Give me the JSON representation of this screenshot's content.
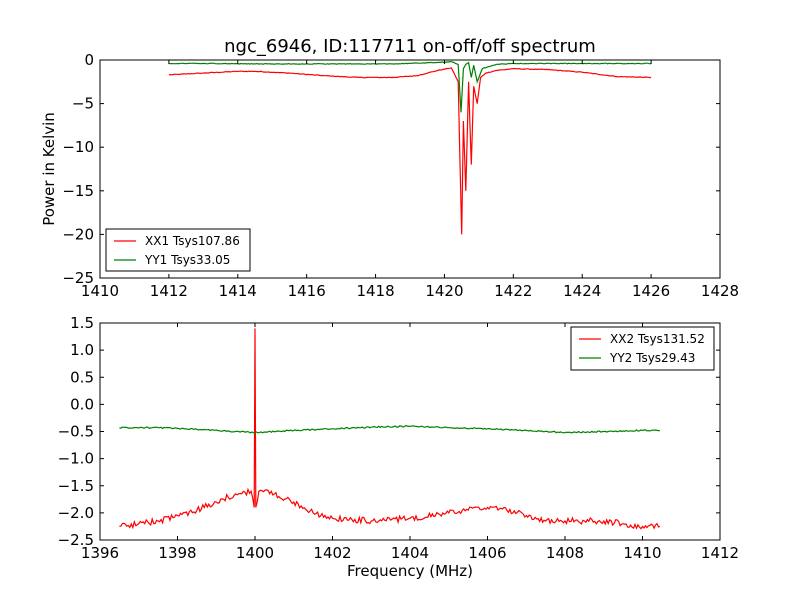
{
  "chart_data": [
    {
      "type": "line",
      "title": "ngc_6946, ID:117711 on-off/off spectrum",
      "xlabel": "",
      "ylabel": "Power in Kelvin",
      "xlim": [
        1410,
        1428
      ],
      "ylim": [
        -25,
        0
      ],
      "xticks": [
        "1410",
        "1412",
        "1414",
        "1416",
        "1418",
        "1420",
        "1422",
        "1424",
        "1426",
        "1428"
      ],
      "yticks": [
        "0",
        "−5",
        "−10",
        "−15",
        "−20",
        "−25"
      ],
      "legend": "lower-left",
      "grid": false,
      "series": [
        {
          "name": "XX1 Tsys107.86",
          "color": "#ff0000",
          "x": [
            1412.0,
            1413.0,
            1414.0,
            1414.5,
            1415.5,
            1416.5,
            1417.5,
            1418.5,
            1419.2,
            1419.8,
            1420.2,
            1420.4,
            1420.5,
            1420.55,
            1420.62,
            1420.7,
            1420.78,
            1420.85,
            1420.95,
            1421.05,
            1421.2,
            1421.5,
            1422.0,
            1423.0,
            1424.0,
            1425.0,
            1426.0
          ],
          "y": [
            -1.7,
            -1.5,
            -1.3,
            -1.3,
            -1.5,
            -1.8,
            -2.0,
            -2.0,
            -1.8,
            -1.2,
            -0.9,
            -2.5,
            -20.0,
            -7.0,
            -15.0,
            -2.5,
            -12.0,
            -3.0,
            -5.0,
            -2.0,
            -1.5,
            -1.2,
            -1.0,
            -1.1,
            -1.4,
            -1.9,
            -2.0
          ]
        },
        {
          "name": "YY1 Tsys33.05",
          "color": "#008000",
          "x": [
            1412.0,
            1413.0,
            1415.0,
            1417.0,
            1418.5,
            1419.7,
            1420.2,
            1420.4,
            1420.48,
            1420.55,
            1420.62,
            1420.7,
            1420.78,
            1420.85,
            1420.95,
            1421.1,
            1421.5,
            1422.0,
            1424.0,
            1426.0
          ],
          "y": [
            -0.4,
            -0.4,
            -0.45,
            -0.45,
            -0.45,
            -0.3,
            -0.2,
            -0.5,
            -6.0,
            -1.0,
            -0.5,
            -0.3,
            -2.0,
            -0.6,
            -2.5,
            -1.0,
            -0.5,
            -0.4,
            -0.4,
            -0.4
          ]
        }
      ]
    },
    {
      "type": "line",
      "title": "",
      "xlabel": "Frequency (MHz)",
      "ylabel": "",
      "xlim": [
        1396,
        1412
      ],
      "ylim": [
        -2.5,
        1.5
      ],
      "xticks": [
        "1396",
        "1398",
        "1400",
        "1402",
        "1404",
        "1406",
        "1408",
        "1410",
        "1412"
      ],
      "yticks": [
        "1.5",
        "1.0",
        "0.5",
        "0.0",
        "−0.5",
        "−1.0",
        "−1.5",
        "−2.0",
        "−2.5"
      ],
      "legend": "top-right",
      "grid": false,
      "series": [
        {
          "name": "XX2 Tsys131.52",
          "color": "#ff0000",
          "x": [
            1396.5,
            1397.0,
            1397.5,
            1398.0,
            1398.5,
            1399.0,
            1399.5,
            1399.9,
            1399.98,
            1400.0,
            1400.02,
            1400.1,
            1400.5,
            1401.0,
            1401.5,
            1402.0,
            1403.0,
            1404.0,
            1405.0,
            1405.5,
            1406.0,
            1406.5,
            1407.0,
            1407.5,
            1408.0,
            1408.5,
            1409.0,
            1409.5,
            1410.0,
            1410.45
          ],
          "y": [
            -2.25,
            -2.2,
            -2.15,
            -2.05,
            -1.95,
            -1.8,
            -1.65,
            -1.6,
            -1.9,
            1.4,
            -1.9,
            -1.6,
            -1.65,
            -1.8,
            -2.0,
            -2.1,
            -2.15,
            -2.1,
            -2.0,
            -1.95,
            -1.9,
            -1.95,
            -2.05,
            -2.15,
            -2.15,
            -2.15,
            -2.15,
            -2.2,
            -2.25,
            -2.25
          ]
        },
        {
          "name": "YY2 Tsys29.43",
          "color": "#008000",
          "x": [
            1396.5,
            1397.5,
            1398.5,
            1399.5,
            1400.0,
            1401.0,
            1402.0,
            1403.0,
            1404.0,
            1405.0,
            1406.0,
            1407.0,
            1408.0,
            1409.0,
            1410.0,
            1410.45
          ],
          "y": [
            -0.43,
            -0.43,
            -0.46,
            -0.5,
            -0.52,
            -0.48,
            -0.45,
            -0.42,
            -0.4,
            -0.43,
            -0.45,
            -0.48,
            -0.52,
            -0.5,
            -0.48,
            -0.48
          ]
        }
      ]
    }
  ]
}
